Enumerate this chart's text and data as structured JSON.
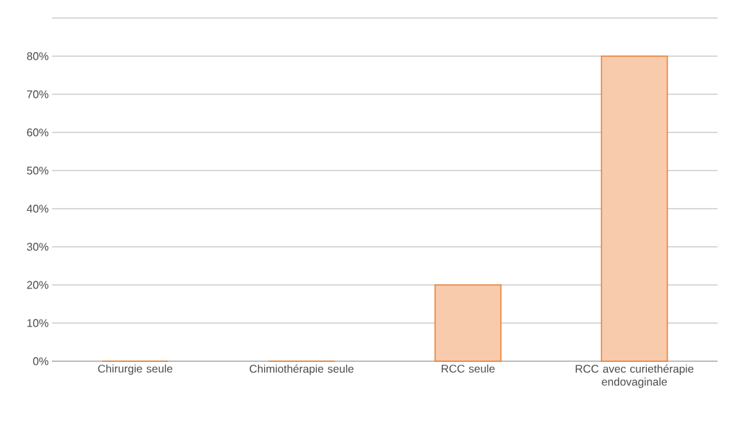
{
  "chart_data": {
    "type": "bar",
    "categories": [
      "Chirurgie seule",
      "Chimiothérapie seule",
      "RCC seule",
      "RCC avec curiethérapie endovaginale"
    ],
    "values": [
      0,
      0,
      20,
      80
    ],
    "color": "#ed7d31",
    "ylim": [
      0,
      90
    ],
    "yticks": [
      {
        "value": 0,
        "label": "0%"
      },
      {
        "value": 10,
        "label": "10%"
      },
      {
        "value": 20,
        "label": "20%"
      },
      {
        "value": 30,
        "label": "30%"
      },
      {
        "value": 40,
        "label": "40%"
      },
      {
        "value": 50,
        "label": "50%"
      },
      {
        "value": 60,
        "label": "60%"
      },
      {
        "value": 70,
        "label": "70%"
      },
      {
        "value": 80,
        "label": "80%"
      },
      {
        "value": 90,
        "label": null
      }
    ],
    "grid": "y"
  }
}
